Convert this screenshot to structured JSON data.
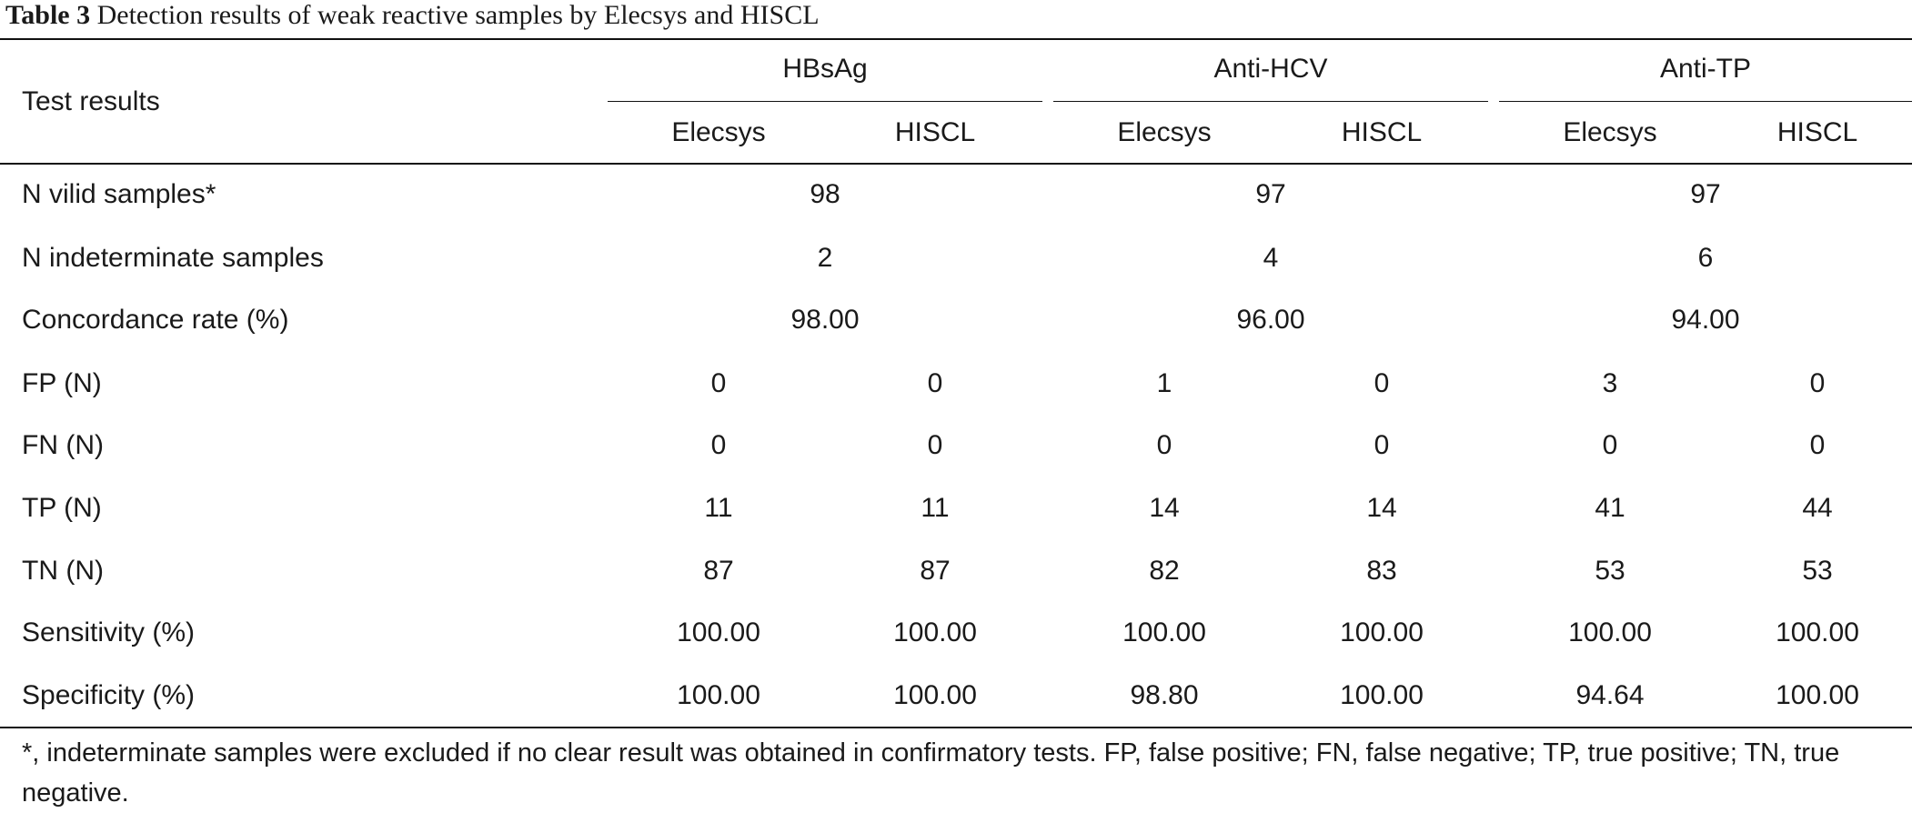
{
  "caption": {
    "label": "Table 3",
    "text": "Detection results of weak reactive samples by Elecsys and HISCL"
  },
  "header": {
    "row_label": "Test results",
    "groups": [
      {
        "name": "HBsAg",
        "sub": [
          "Elecsys",
          "HISCL"
        ]
      },
      {
        "name": "Anti-HCV",
        "sub": [
          "Elecsys",
          "HISCL"
        ]
      },
      {
        "name": "Anti-TP",
        "sub": [
          "Elecsys",
          "HISCL"
        ]
      }
    ]
  },
  "rows": [
    {
      "label": "N vilid samples*",
      "merged": [
        "98",
        "97",
        "97"
      ]
    },
    {
      "label": "N indeterminate samples",
      "merged": [
        "2",
        "4",
        "6"
      ]
    },
    {
      "label": "Concordance rate (%)",
      "merged": [
        "98.00",
        "96.00",
        "94.00"
      ]
    },
    {
      "label": "FP (N)",
      "values": [
        "0",
        "0",
        "1",
        "0",
        "3",
        "0"
      ]
    },
    {
      "label": "FN (N)",
      "values": [
        "0",
        "0",
        "0",
        "0",
        "0",
        "0"
      ]
    },
    {
      "label": "TP (N)",
      "values": [
        "11",
        "11",
        "14",
        "14",
        "41",
        "44"
      ]
    },
    {
      "label": "TN (N)",
      "values": [
        "87",
        "87",
        "82",
        "83",
        "53",
        "53"
      ]
    },
    {
      "label": "Sensitivity (%)",
      "values": [
        "100.00",
        "100.00",
        "100.00",
        "100.00",
        "100.00",
        "100.00"
      ]
    },
    {
      "label": "Specificity (%)",
      "values": [
        "100.00",
        "100.00",
        "98.80",
        "100.00",
        "94.64",
        "100.00"
      ]
    }
  ],
  "footnote": "*, indeterminate samples were excluded if no clear result was obtained in confirmatory tests. FP, false positive; FN, false negative; TP, true positive; TN, true negative."
}
